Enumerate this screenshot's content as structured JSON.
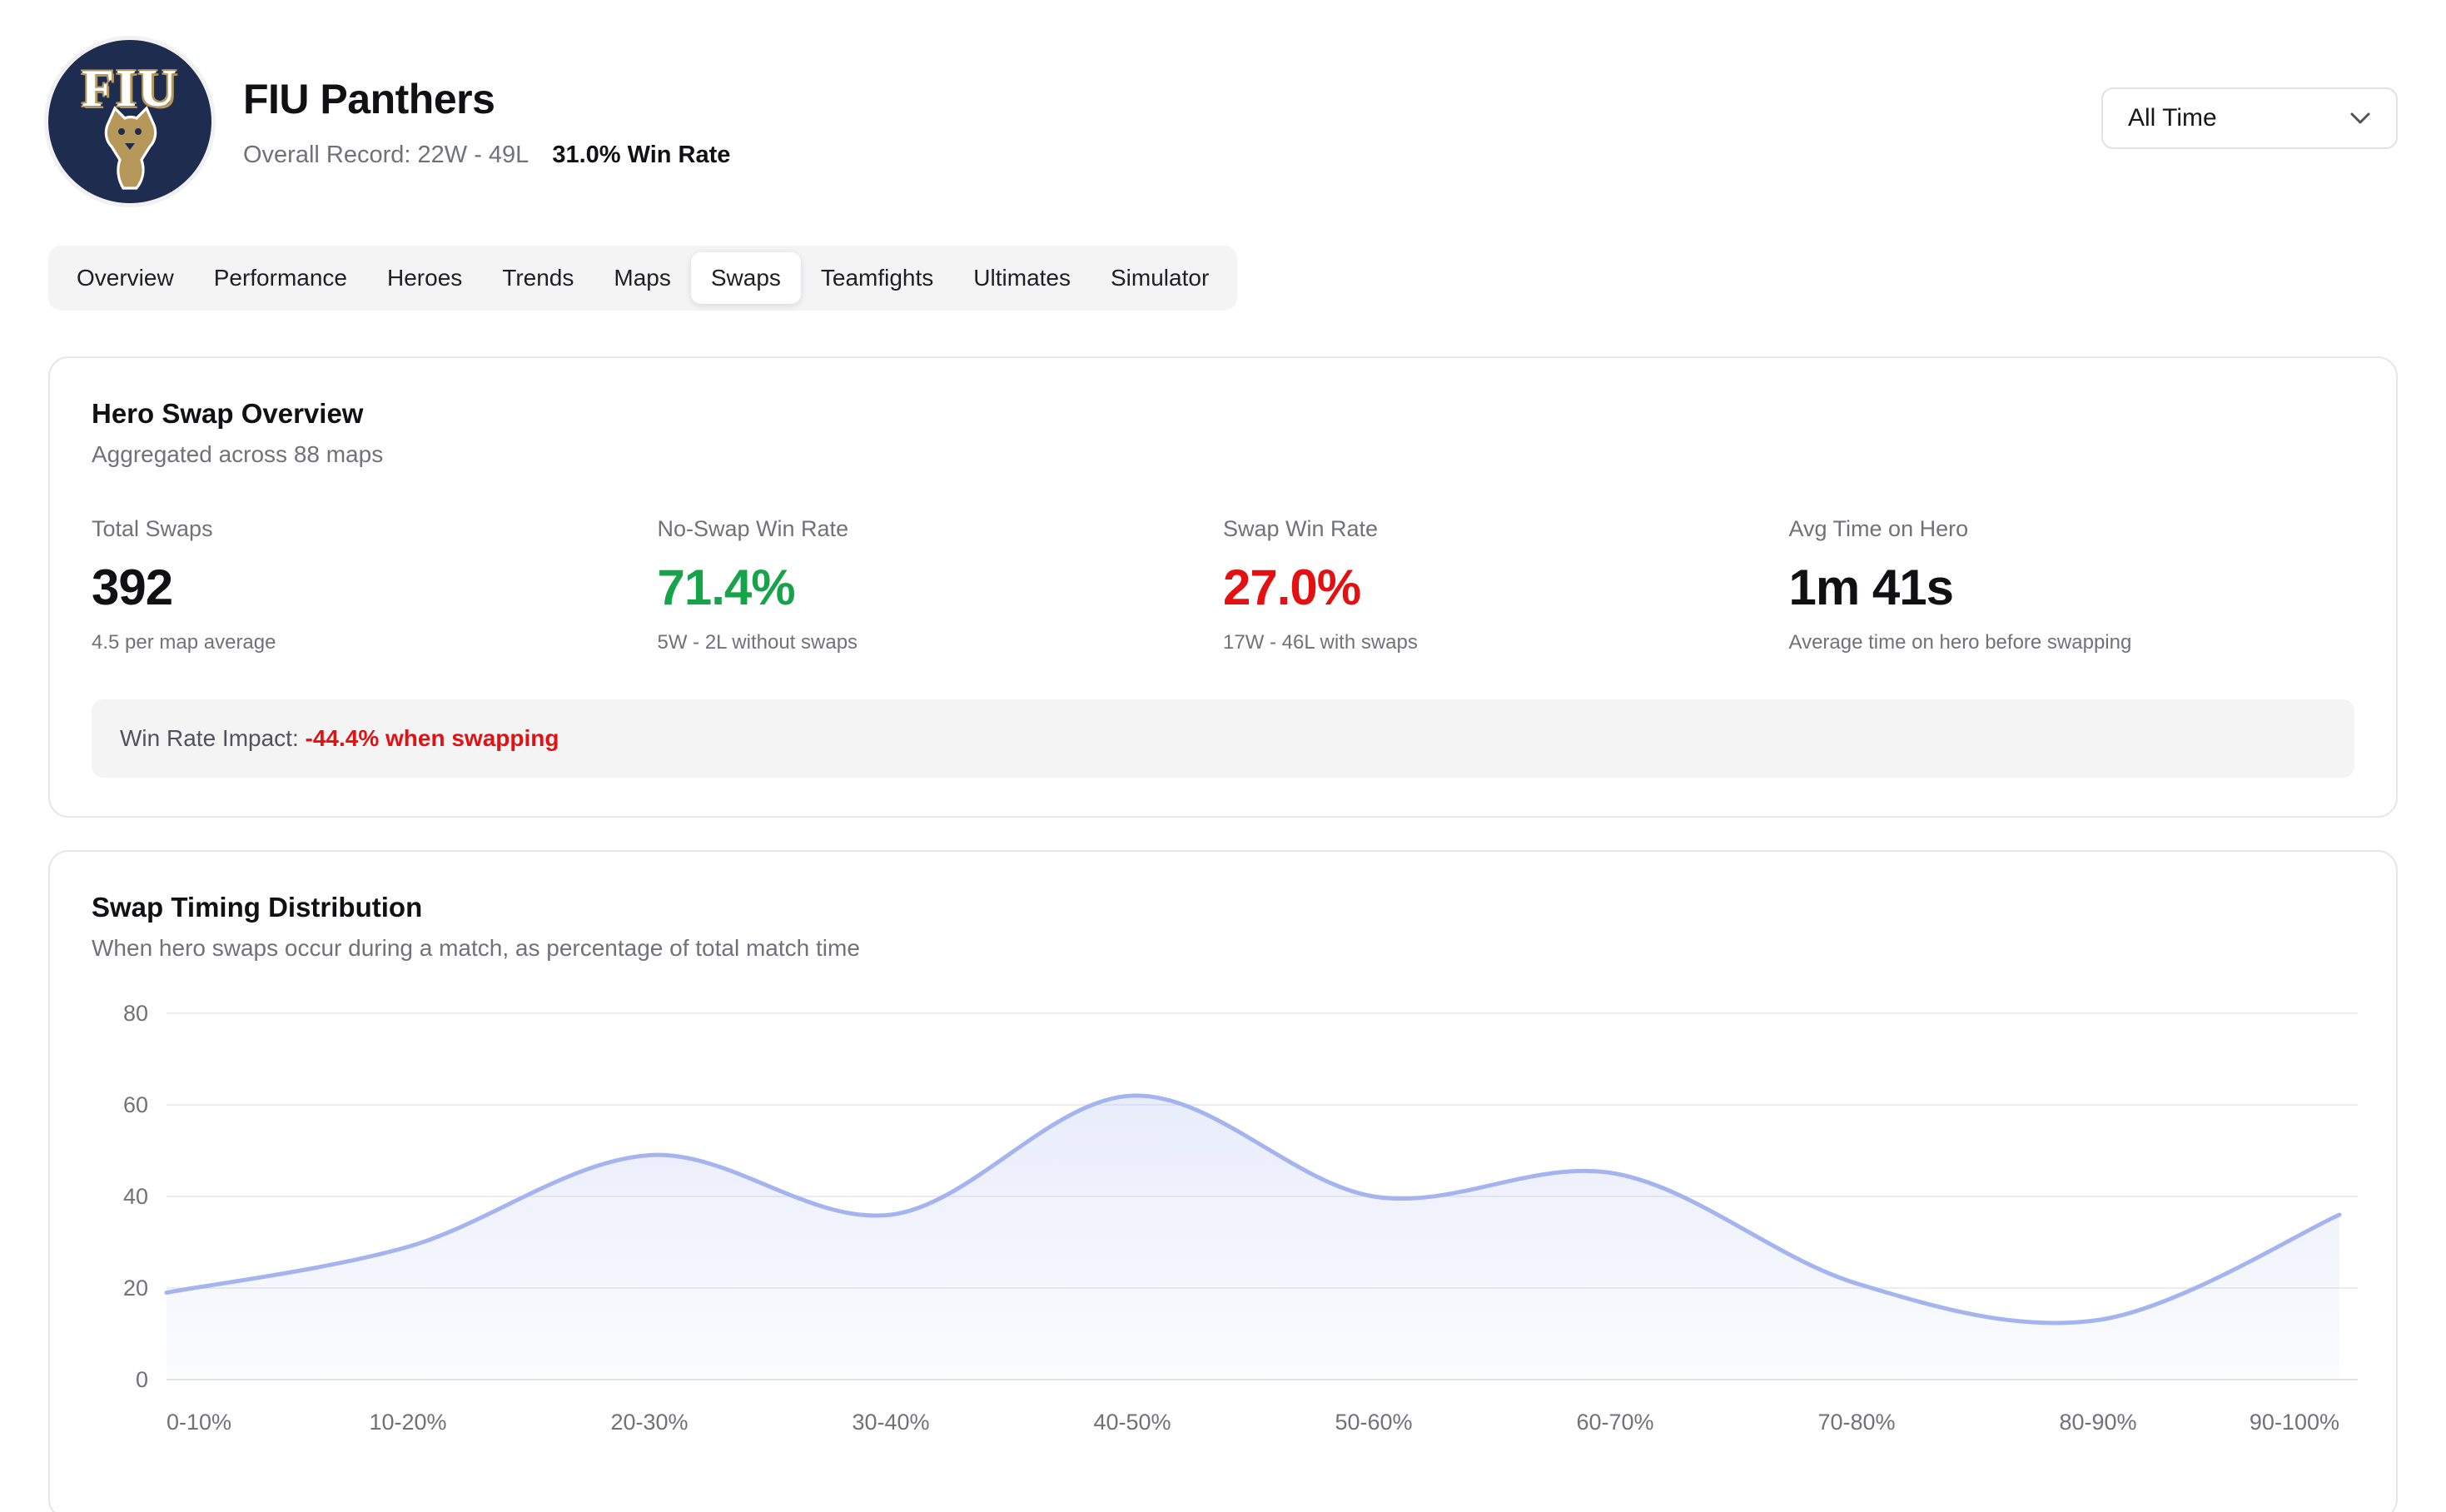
{
  "header": {
    "logo_text": "FIU",
    "team_name": "FIU Panthers",
    "record_label": "Overall Record: 22W - 49L",
    "win_rate_label": "31.0% Win Rate",
    "time_filter": "All Time"
  },
  "tabs": [
    {
      "label": "Overview",
      "active": false
    },
    {
      "label": "Performance",
      "active": false
    },
    {
      "label": "Heroes",
      "active": false
    },
    {
      "label": "Trends",
      "active": false
    },
    {
      "label": "Maps",
      "active": false
    },
    {
      "label": "Swaps",
      "active": true
    },
    {
      "label": "Teamfights",
      "active": false
    },
    {
      "label": "Ultimates",
      "active": false
    },
    {
      "label": "Simulator",
      "active": false
    }
  ],
  "hero_swap_overview": {
    "title": "Hero Swap Overview",
    "subtitle": "Aggregated across 88 maps",
    "stats": [
      {
        "label": "Total Swaps",
        "value": "392",
        "sub": "4.5 per map average",
        "color": "#111113"
      },
      {
        "label": "No-Swap Win Rate",
        "value": "71.4%",
        "sub": "5W - 2L without swaps",
        "color": "#17a34a"
      },
      {
        "label": "Swap Win Rate",
        "value": "27.0%",
        "sub": "17W - 46L with swaps",
        "color": "#e31111"
      },
      {
        "label": "Avg Time on Hero",
        "value": "1m 41s",
        "sub": "Average time on hero before swapping",
        "color": "#111113"
      }
    ],
    "impact": {
      "prefix": "Win Rate Impact: ",
      "highlight": "-44.4% when swapping",
      "highlight_color": "#e31111"
    }
  },
  "swap_timing": {
    "title": "Swap Timing Distribution",
    "subtitle": "When hero swaps occur during a match, as percentage of total match time"
  },
  "chart_data": {
    "type": "area",
    "title": "Swap Timing Distribution",
    "categories": [
      "0-10%",
      "10-20%",
      "20-30%",
      "30-40%",
      "40-50%",
      "50-60%",
      "60-70%",
      "70-80%",
      "80-90%",
      "90-100%"
    ],
    "values": [
      19,
      29,
      49,
      36,
      62,
      40,
      45,
      21,
      13,
      36
    ],
    "xlabel": "",
    "ylabel": "",
    "ylim": [
      0,
      80
    ],
    "yticks": [
      0,
      20,
      40,
      60,
      80
    ],
    "grid": true,
    "legend": false,
    "line_color": "#a4b4ee",
    "fill_color": "#a9b8ef",
    "grid_color": "#ececf0",
    "axis_color": "#e3e3e7",
    "tick_color": "#71717a"
  }
}
